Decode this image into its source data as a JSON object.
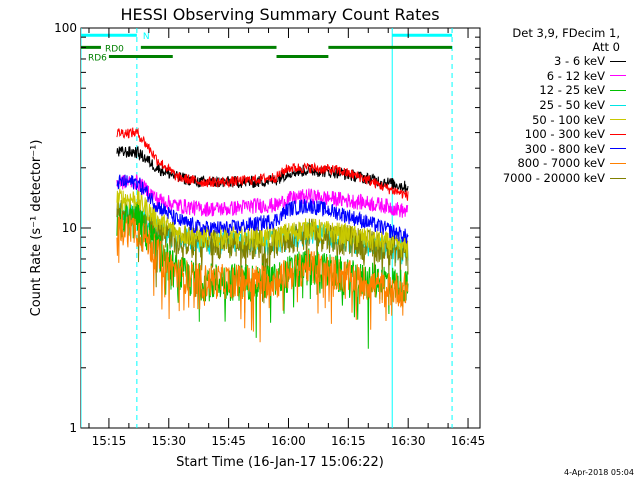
{
  "chart_data": {
    "type": "line",
    "title": "HESSI Observing Summary Count Rates",
    "xlabel": "Start Time (16-Jan-17 15:06:22)",
    "ylabel": "Count Rate (s⁻¹ detector⁻¹)",
    "y_scale": "log",
    "ylim": [
      1,
      100
    ],
    "xlim": [
      "15:08",
      "16:48"
    ],
    "x_ticks": [
      "15:15",
      "15:30",
      "15:45",
      "16:00",
      "16:15",
      "16:30",
      "16:45"
    ],
    "y_ticks": [
      "1",
      "10",
      "100"
    ],
    "data_start": "15:17",
    "data_end": "16:30",
    "legend_header": [
      "Det 3,9, FDecim 1,",
      "Att 0"
    ],
    "legend_position": "right",
    "series": [
      {
        "name": "3 - 6 keV",
        "color": "#000000",
        "values": [
          {
            "t": "15:17",
            "v": 24
          },
          {
            "t": "15:22",
            "v": 24
          },
          {
            "t": "15:27",
            "v": 20
          },
          {
            "t": "15:32",
            "v": 18
          },
          {
            "t": "15:38",
            "v": 17
          },
          {
            "t": "15:45",
            "v": 17
          },
          {
            "t": "15:52",
            "v": 17
          },
          {
            "t": "15:57",
            "v": 17.5
          },
          {
            "t": "16:00",
            "v": 19
          },
          {
            "t": "16:05",
            "v": 19.5
          },
          {
            "t": "16:12",
            "v": 19
          },
          {
            "t": "16:18",
            "v": 18
          },
          {
            "t": "16:24",
            "v": 17
          },
          {
            "t": "16:30",
            "v": 16
          }
        ]
      },
      {
        "name": "6 - 12 keV",
        "color": "#ff00ff",
        "values": [
          {
            "t": "15:17",
            "v": 17
          },
          {
            "t": "15:22",
            "v": 17
          },
          {
            "t": "15:27",
            "v": 14
          },
          {
            "t": "15:32",
            "v": 13
          },
          {
            "t": "15:38",
            "v": 12.5
          },
          {
            "t": "15:45",
            "v": 12.5
          },
          {
            "t": "15:52",
            "v": 13
          },
          {
            "t": "15:57",
            "v": 13
          },
          {
            "t": "16:00",
            "v": 14
          },
          {
            "t": "16:05",
            "v": 14.5
          },
          {
            "t": "16:12",
            "v": 14
          },
          {
            "t": "16:18",
            "v": 13.5
          },
          {
            "t": "16:24",
            "v": 13
          },
          {
            "t": "16:30",
            "v": 12
          }
        ]
      },
      {
        "name": "12 - 25 keV",
        "color": "#00c000",
        "values": [
          {
            "t": "15:17",
            "v": 11
          },
          {
            "t": "15:22",
            "v": 11
          },
          {
            "t": "15:27",
            "v": 8
          },
          {
            "t": "15:32",
            "v": 6
          },
          {
            "t": "15:38",
            "v": 5.5
          },
          {
            "t": "15:45",
            "v": 5.5
          },
          {
            "t": "15:52",
            "v": 5.5
          },
          {
            "t": "15:57",
            "v": 5.5
          },
          {
            "t": "16:00",
            "v": 6
          },
          {
            "t": "16:05",
            "v": 6.5
          },
          {
            "t": "16:12",
            "v": 6
          },
          {
            "t": "16:18",
            "v": 5.5
          },
          {
            "t": "16:24",
            "v": 5.5
          },
          {
            "t": "16:30",
            "v": 5
          }
        ]
      },
      {
        "name": "25 - 50 keV",
        "color": "#00e5e5",
        "values": [
          {
            "t": "15:17",
            "v": 12
          },
          {
            "t": "15:22",
            "v": 12
          },
          {
            "t": "15:27",
            "v": 10
          },
          {
            "t": "15:32",
            "v": 9
          },
          {
            "t": "15:38",
            "v": 8.5
          },
          {
            "t": "15:45",
            "v": 8.5
          },
          {
            "t": "15:52",
            "v": 8.5
          },
          {
            "t": "15:57",
            "v": 8.5
          },
          {
            "t": "16:00",
            "v": 9
          },
          {
            "t": "16:05",
            "v": 9.5
          },
          {
            "t": "16:12",
            "v": 9
          },
          {
            "t": "16:18",
            "v": 8.5
          },
          {
            "t": "16:24",
            "v": 8
          },
          {
            "t": "16:30",
            "v": 7.5
          }
        ]
      },
      {
        "name": "50 - 100 keV",
        "color": "#c8c800",
        "values": [
          {
            "t": "15:17",
            "v": 14
          },
          {
            "t": "15:22",
            "v": 14
          },
          {
            "t": "15:27",
            "v": 11
          },
          {
            "t": "15:32",
            "v": 9.5
          },
          {
            "t": "15:38",
            "v": 9
          },
          {
            "t": "15:45",
            "v": 9
          },
          {
            "t": "15:52",
            "v": 9
          },
          {
            "t": "15:57",
            "v": 9
          },
          {
            "t": "16:00",
            "v": 9.5
          },
          {
            "t": "16:05",
            "v": 10
          },
          {
            "t": "16:12",
            "v": 9.5
          },
          {
            "t": "16:18",
            "v": 9
          },
          {
            "t": "16:24",
            "v": 8.5
          },
          {
            "t": "16:30",
            "v": 8
          }
        ]
      },
      {
        "name": "100 - 300 keV",
        "color": "#ff0000",
        "values": [
          {
            "t": "15:17",
            "v": 30
          },
          {
            "t": "15:22",
            "v": 30
          },
          {
            "t": "15:27",
            "v": 22
          },
          {
            "t": "15:32",
            "v": 18
          },
          {
            "t": "15:38",
            "v": 17
          },
          {
            "t": "15:45",
            "v": 17
          },
          {
            "t": "15:52",
            "v": 17.5
          },
          {
            "t": "15:57",
            "v": 18
          },
          {
            "t": "16:00",
            "v": 20
          },
          {
            "t": "16:05",
            "v": 20
          },
          {
            "t": "16:12",
            "v": 19.5
          },
          {
            "t": "16:18",
            "v": 18
          },
          {
            "t": "16:24",
            "v": 16
          },
          {
            "t": "16:30",
            "v": 14.5
          }
        ]
      },
      {
        "name": "300 - 800 keV",
        "color": "#0000ff",
        "values": [
          {
            "t": "15:17",
            "v": 17
          },
          {
            "t": "15:22",
            "v": 17
          },
          {
            "t": "15:27",
            "v": 13
          },
          {
            "t": "15:32",
            "v": 11
          },
          {
            "t": "15:38",
            "v": 10
          },
          {
            "t": "15:45",
            "v": 10
          },
          {
            "t": "15:52",
            "v": 10.5
          },
          {
            "t": "15:57",
            "v": 11
          },
          {
            "t": "16:00",
            "v": 12.5
          },
          {
            "t": "16:05",
            "v": 13
          },
          {
            "t": "16:12",
            "v": 12
          },
          {
            "t": "16:18",
            "v": 11
          },
          {
            "t": "16:24",
            "v": 10
          },
          {
            "t": "16:30",
            "v": 9
          }
        ]
      },
      {
        "name": "800 - 7000 keV",
        "color": "#ff8000",
        "values": [
          {
            "t": "15:17",
            "v": 10
          },
          {
            "t": "15:22",
            "v": 10
          },
          {
            "t": "15:27",
            "v": 7.5
          },
          {
            "t": "15:32",
            "v": 6
          },
          {
            "t": "15:38",
            "v": 5.5
          },
          {
            "t": "15:45",
            "v": 5.5
          },
          {
            "t": "15:52",
            "v": 5.5
          },
          {
            "t": "15:57",
            "v": 5.5
          },
          {
            "t": "16:00",
            "v": 6
          },
          {
            "t": "16:05",
            "v": 6.5
          },
          {
            "t": "16:12",
            "v": 6
          },
          {
            "t": "16:18",
            "v": 5.5
          },
          {
            "t": "16:24",
            "v": 5
          },
          {
            "t": "16:30",
            "v": 5
          }
        ]
      },
      {
        "name": "7000 - 20000 keV",
        "color": "#808000",
        "values": [
          {
            "t": "15:17",
            "v": 12
          },
          {
            "t": "15:22",
            "v": 12
          },
          {
            "t": "15:27",
            "v": 10
          },
          {
            "t": "15:32",
            "v": 9
          },
          {
            "t": "15:38",
            "v": 8.5
          },
          {
            "t": "15:45",
            "v": 8.5
          },
          {
            "t": "15:52",
            "v": 8.5
          },
          {
            "t": "15:57",
            "v": 8.5
          },
          {
            "t": "16:00",
            "v": 9
          },
          {
            "t": "16:05",
            "v": 9.5
          },
          {
            "t": "16:12",
            "v": 9
          },
          {
            "t": "16:18",
            "v": 8.5
          },
          {
            "t": "16:24",
            "v": 8
          },
          {
            "t": "16:30",
            "v": 7.5
          }
        ]
      }
    ],
    "status_bars": [
      {
        "label": "N",
        "color": "#00ffff",
        "level": 92,
        "intervals": [
          [
            "15:08",
            "15:22"
          ],
          [
            "16:26",
            "16:41"
          ]
        ]
      },
      {
        "label": "RD0",
        "color": "#008000",
        "level": 80,
        "intervals": [
          [
            "15:08",
            "15:13"
          ],
          [
            "15:23",
            "15:57"
          ],
          [
            "16:10",
            "16:41"
          ]
        ]
      },
      {
        "label": "RD6",
        "color": "#008000",
        "level": 72,
        "intervals": [
          [
            "15:15",
            "15:31"
          ],
          [
            "15:57",
            "16:10"
          ]
        ]
      }
    ],
    "markers": [
      {
        "t": "15:08",
        "color": "#00ffff",
        "style": "solid"
      },
      {
        "t": "15:22",
        "color": "#00ffff",
        "style": "dashed"
      },
      {
        "t": "16:26",
        "color": "#00ffff",
        "style": "solid"
      },
      {
        "t": "16:41",
        "color": "#00ffff",
        "style": "dashed"
      }
    ]
  },
  "footer": {
    "timestamp": "4-Apr-2018 05:04"
  }
}
